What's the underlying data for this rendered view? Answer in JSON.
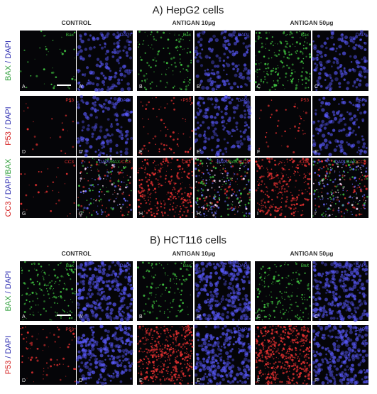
{
  "sections": [
    {
      "title": "A) HepG2 cells",
      "columns": [
        "CONTROL",
        "ANTIGAN 10μg",
        "ANTIGAN 50μg"
      ],
      "rows": [
        {
          "label": [
            {
              "text": "BAX",
              "color": "#2e9e3a"
            },
            {
              "text": " / ",
              "color": "#2b2bb0"
            },
            {
              "text": "DAPI",
              "color": "#2b2bb0"
            }
          ],
          "panels": [
            {
              "channel": [
                {
                  "text": "Bax",
                  "color": "#3fbf3f"
                }
              ],
              "letter": "A"
            },
            {
              "channel": [
                {
                  "text": "DAPI",
                  "color": "#5a5aff"
                }
              ],
              "letter": "A'"
            },
            {
              "channel": [
                {
                  "text": "Bax",
                  "color": "#3fbf3f"
                }
              ],
              "letter": "B"
            },
            {
              "channel": [
                {
                  "text": "DAPI",
                  "color": "#5a5aff"
                }
              ],
              "letter": "B'"
            },
            {
              "channel": [
                {
                  "text": "Bax",
                  "color": "#3fbf3f"
                }
              ],
              "letter": "C"
            },
            {
              "channel": [
                {
                  "text": "DAPI",
                  "color": "#5a5aff"
                }
              ],
              "letter": "C'"
            }
          ]
        },
        {
          "label": [
            {
              "text": "P53",
              "color": "#d42020"
            },
            {
              "text": " / ",
              "color": "#2b2bb0"
            },
            {
              "text": "DAPI",
              "color": "#2b2bb0"
            }
          ],
          "panels": [
            {
              "channel": [
                {
                  "text": "P53",
                  "color": "#e03030"
                }
              ],
              "letter": "D"
            },
            {
              "channel": [
                {
                  "text": "DAPI",
                  "color": "#5a5aff"
                }
              ],
              "letter": "D'"
            },
            {
              "channel": [
                {
                  "text": "P53",
                  "color": "#e03030"
                }
              ],
              "letter": "E"
            },
            {
              "channel": [
                {
                  "text": "DAPI",
                  "color": "#5a5aff"
                }
              ],
              "letter": "E'"
            },
            {
              "channel": [
                {
                  "text": "P53",
                  "color": "#e03030"
                }
              ],
              "letter": "F"
            },
            {
              "channel": [
                {
                  "text": "DAPI",
                  "color": "#5a5aff"
                }
              ],
              "letter": "F'"
            }
          ]
        },
        {
          "label": [
            {
              "text": "CC3",
              "color": "#d42020"
            },
            {
              "text": " / ",
              "color": "#2b2bb0"
            },
            {
              "text": "DAPI",
              "color": "#2b2bb0"
            },
            {
              "text": "/BAX",
              "color": "#2e9e3a"
            }
          ],
          "panels": [
            {
              "channel": [
                {
                  "text": "CC3",
                  "color": "#e03030"
                }
              ],
              "letter": "G"
            },
            {
              "channel": [
                {
                  "text": "DAPI",
                  "color": "#6a6aff"
                },
                {
                  "text": "/BAX",
                  "color": "#3fbf3f"
                },
                {
                  "text": "/CC3",
                  "color": "#e03030"
                }
              ],
              "letter": "G'"
            },
            {
              "channel": [
                {
                  "text": "CC3",
                  "color": "#e03030"
                }
              ],
              "letter": "H"
            },
            {
              "channel": [
                {
                  "text": "DAPI",
                  "color": "#6a6aff"
                },
                {
                  "text": "/BAX",
                  "color": "#3fbf3f"
                },
                {
                  "text": "/CC3",
                  "color": "#e03030"
                }
              ],
              "letter": "H'"
            },
            {
              "channel": [
                {
                  "text": "CC3",
                  "color": "#e03030"
                }
              ],
              "letter": "I"
            },
            {
              "channel": [
                {
                  "text": "DAPI",
                  "color": "#6a6aff"
                },
                {
                  "text": "/BAX",
                  "color": "#3fbf3f"
                },
                {
                  "text": "/CC3",
                  "color": "#e03030"
                }
              ],
              "letter": "I'"
            }
          ]
        }
      ]
    },
    {
      "title": "B) HCT116 cells",
      "columns": [
        "CONTROL",
        "ANTIGAN 10μg",
        "ANTIGAN 50μg"
      ],
      "rows": [
        {
          "label": [
            {
              "text": "BAX",
              "color": "#2e9e3a"
            },
            {
              "text": " / ",
              "color": "#2b2bb0"
            },
            {
              "text": "DAPI",
              "color": "#2b2bb0"
            }
          ],
          "panels": [
            {
              "channel": [
                {
                  "text": "Bax",
                  "color": "#3fbf3f"
                }
              ],
              "letter": "A"
            },
            {
              "channel": [
                {
                  "text": "DAPI",
                  "color": "#5a5aff"
                }
              ],
              "letter": "A'"
            },
            {
              "channel": [
                {
                  "text": "Bax",
                  "color": "#3fbf3f"
                }
              ],
              "letter": "B"
            },
            {
              "channel": [
                {
                  "text": "DAPI",
                  "color": "#5a5aff"
                }
              ],
              "letter": "B'"
            },
            {
              "channel": [
                {
                  "text": "Bax",
                  "color": "#3fbf3f"
                }
              ],
              "letter": "C"
            },
            {
              "channel": [
                {
                  "text": "DAPI",
                  "color": "#5a5aff"
                }
              ],
              "letter": "C'"
            }
          ]
        },
        {
          "label": [
            {
              "text": "P53",
              "color": "#d42020"
            },
            {
              "text": " / ",
              "color": "#2b2bb0"
            },
            {
              "text": "DAPI",
              "color": "#2b2bb0"
            }
          ],
          "panels": [
            {
              "channel": [
                {
                  "text": "P53",
                  "color": "#e03030"
                }
              ],
              "letter": "D"
            },
            {
              "channel": [
                {
                  "text": "DAPI",
                  "color": "#5a5aff"
                }
              ],
              "letter": "D'"
            },
            {
              "channel": [
                {
                  "text": "P53",
                  "color": "#e03030"
                }
              ],
              "letter": "E"
            },
            {
              "channel": [
                {
                  "text": "DAPI",
                  "color": "#5a5aff"
                }
              ],
              "letter": "E'"
            },
            {
              "channel": [
                {
                  "text": "P53",
                  "color": "#e03030"
                }
              ],
              "letter": "F"
            },
            {
              "channel": [
                {
                  "text": "DAPI",
                  "color": "#5a5aff"
                }
              ],
              "letter": "F'"
            }
          ]
        }
      ]
    }
  ]
}
